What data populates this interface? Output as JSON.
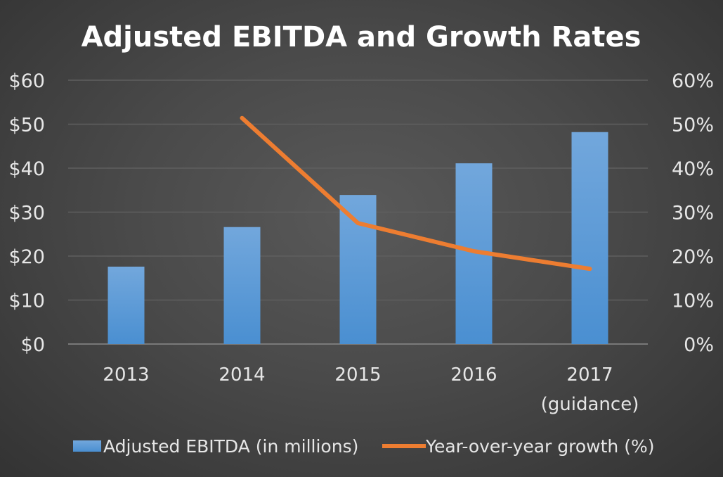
{
  "chart_data": {
    "type": "bar+line",
    "title": "Adjusted EBITDA and Growth Rates",
    "categories": [
      "2013",
      "2014",
      "2015",
      "2016",
      "2017\n(guidance)"
    ],
    "series": [
      {
        "name": "Adjusted EBITDA (in millions)",
        "type": "bar",
        "axis": "left",
        "color": "#5b9bd5",
        "values": [
          17.6,
          26.6,
          33.9,
          41.1,
          48.2
        ]
      },
      {
        "name": "Year-over-year growth (%)",
        "type": "line",
        "axis": "right",
        "color": "#ed7d31",
        "values": [
          null,
          51.4,
          27.5,
          21.1,
          17.1
        ]
      }
    ],
    "y_left": {
      "ylim": [
        0,
        60
      ],
      "ticks": [
        "$0",
        "$10",
        "$20",
        "$30",
        "$40",
        "$50",
        "$60"
      ]
    },
    "y_right": {
      "ylim": [
        0,
        60
      ],
      "ticks": [
        "0%",
        "10%",
        "20%",
        "30%",
        "40%",
        "50%",
        "60%"
      ]
    },
    "grid": true,
    "legend": "bottom"
  }
}
